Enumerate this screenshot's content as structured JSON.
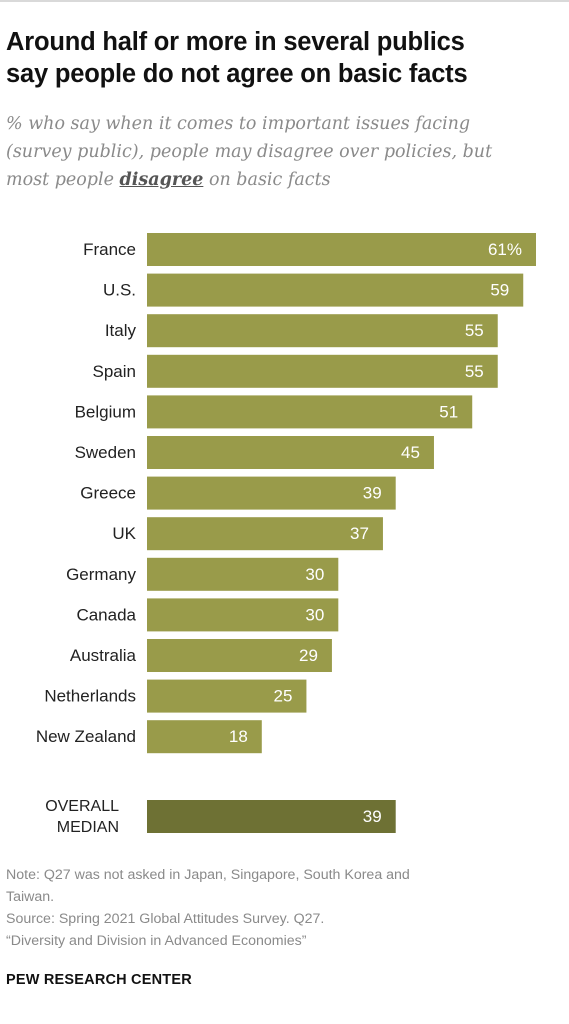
{
  "title_line1": "Around half or more in several publics",
  "title_line2": "say people do not agree on basic facts",
  "subtitle_line1": "% who say when it comes to important issues facing",
  "subtitle_line2": "(survey public), people may disagree over policies, but",
  "subtitle_line3_pre": "most people",
  "subtitle_line3_emph": "disagree",
  "subtitle_line3_post": "on basic facts",
  "colors": {
    "bar": "#999b4a",
    "median_bar": "#6e7134",
    "label_text": "#ffffff"
  },
  "chart_data": {
    "type": "bar",
    "orientation": "horizontal",
    "categories": [
      "France",
      "U.S.",
      "Italy",
      "Spain",
      "Belgium",
      "Sweden",
      "Greece",
      "UK",
      "Germany",
      "Canada",
      "Australia",
      "Netherlands",
      "New Zealand"
    ],
    "values": [
      61,
      59,
      55,
      55,
      51,
      45,
      39,
      37,
      30,
      30,
      29,
      25,
      18
    ],
    "value_labels": [
      "61%",
      "59",
      "55",
      "55",
      "51",
      "45",
      "39",
      "37",
      "30",
      "30",
      "29",
      "25",
      "18"
    ],
    "unit": "%",
    "xlim": [
      0,
      61
    ],
    "median": {
      "label_line1": "OVERALL",
      "label_line2": "MEDIAN",
      "value": 39,
      "value_label": "39"
    }
  },
  "note_line1": "Note: Q27 was not asked in Japan, Singapore, South Korea and",
  "note_line2": "Taiwan.",
  "source_line1": "Source: Spring 2021 Global Attitudes Survey. Q27.",
  "source_line2": "“Diversity and Division in Advanced Economies”",
  "brand": "PEW RESEARCH CENTER"
}
